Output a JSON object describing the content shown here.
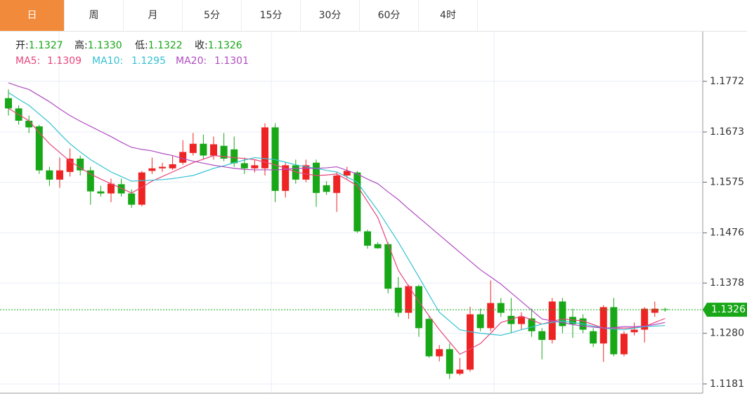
{
  "tabs": [
    "日",
    "周",
    "月",
    "5分",
    "15分",
    "30分",
    "60分",
    "4时"
  ],
  "active_tab": 0,
  "info": [
    {
      "label": "开:",
      "value": "1.1327"
    },
    {
      "label": "高:",
      "value": "1.1330"
    },
    {
      "label": "低:",
      "value": "1.1322"
    },
    {
      "label": "收:",
      "value": "1.1326"
    }
  ],
  "chart_data": {
    "type": "candlestick",
    "ylim": [
      1.1163,
      1.1869
    ],
    "yticks": [
      1.1772,
      1.1673,
      1.1575,
      1.1476,
      1.1378,
      {
        "value": 1.128,
        "label": "1.1280"
      },
      1.1181
    ],
    "grid": true,
    "up_color": "#ee2424",
    "down_color": "#17a717",
    "open": [
      1.1739,
      1.1719,
      1.1695,
      1.1684,
      1.1598,
      1.158,
      1.1595,
      1.1621,
      1.1598,
      1.1557,
      1.1553,
      1.1571,
      1.1553,
      1.1531,
      1.1597,
      1.1602,
      1.1602,
      1.1613,
      1.1632,
      1.165,
      1.1627,
      1.1646,
      1.1639,
      1.1612,
      1.1602,
      1.1602,
      1.1682,
      1.1558,
      1.1608,
      1.158,
      1.1613,
      1.1569,
      1.1554,
      1.1588,
      1.1594,
      1.1479,
      1.1454,
      1.1454,
      1.1369,
      1.132,
      1.1372,
      1.1308,
      1.1235,
      1.1249,
      1.1201,
      1.1209,
      1.1317,
      1.129,
      1.1339,
      1.1314,
      1.1298,
      1.1309,
      1.1284,
      1.1267,
      1.1342,
      1.1312,
      1.1309,
      1.1284,
      1.126,
      1.1331,
      1.1239,
      1.1282,
      1.1287,
      1.132,
      1.1327
    ],
    "high": [
      1.1756,
      1.1725,
      1.1705,
      1.1687,
      1.1605,
      1.1623,
      1.1641,
      1.1627,
      1.1605,
      1.1568,
      1.1582,
      1.1582,
      1.1561,
      1.1597,
      1.1623,
      1.1613,
      1.1627,
      1.1657,
      1.1671,
      1.1668,
      1.1664,
      1.1671,
      1.1664,
      1.1623,
      1.1619,
      1.169,
      1.169,
      1.1613,
      1.1619,
      1.1619,
      1.1619,
      1.1577,
      1.1594,
      1.1605,
      1.1597,
      1.1482,
      1.1458,
      1.1458,
      1.139,
      1.1375,
      1.1375,
      1.1314,
      1.1257,
      1.126,
      1.1232,
      1.1332,
      1.1328,
      1.1383,
      1.1349,
      1.1349,
      1.1321,
      1.1328,
      1.129,
      1.1349,
      1.1349,
      1.1328,
      1.1317,
      1.129,
      1.1335,
      1.1349,
      1.1284,
      1.1301,
      1.1331,
      1.1342,
      1.133
    ],
    "low": [
      1.1705,
      1.1687,
      1.1671,
      1.1591,
      1.1568,
      1.1564,
      1.1586,
      1.1588,
      1.1531,
      1.1547,
      1.1536,
      1.1547,
      1.1525,
      1.1528,
      1.1591,
      1.1595,
      1.1599,
      1.1609,
      1.1627,
      1.1619,
      1.1619,
      1.1616,
      1.1605,
      1.1591,
      1.1594,
      1.1588,
      1.1536,
      1.1545,
      1.1572,
      1.1575,
      1.1527,
      1.155,
      1.1517,
      1.1582,
      1.1476,
      1.1445,
      1.1445,
      1.1358,
      1.1312,
      1.1308,
      1.1273,
      1.1232,
      1.1225,
      1.1191,
      1.1198,
      1.1205,
      1.1284,
      1.1284,
      1.1312,
      1.128,
      1.1287,
      1.1273,
      1.1229,
      1.126,
      1.128,
      1.1271,
      1.128,
      1.1253,
      1.1224,
      1.1235,
      1.1235,
      1.1276,
      1.1262,
      1.1312,
      1.1322
    ],
    "close": [
      1.1719,
      1.1695,
      1.1682,
      1.1598,
      1.158,
      1.1598,
      1.1621,
      1.1598,
      1.1557,
      1.1553,
      1.1572,
      1.1553,
      1.1531,
      1.1594,
      1.1602,
      1.1605,
      1.161,
      1.1634,
      1.165,
      1.1627,
      1.1649,
      1.1621,
      1.1612,
      1.1602,
      1.1608,
      1.1682,
      1.1558,
      1.1608,
      1.158,
      1.1608,
      1.1554,
      1.1556,
      1.1588,
      1.1597,
      1.1479,
      1.1451,
      1.1446,
      1.1367,
      1.132,
      1.1372,
      1.129,
      1.1235,
      1.1249,
      1.1201,
      1.1209,
      1.1317,
      1.129,
      1.1339,
      1.132,
      1.1298,
      1.1312,
      1.1284,
      1.1267,
      1.1342,
      1.1294,
      1.1298,
      1.1287,
      1.126,
      1.1331,
      1.1239,
      1.1279,
      1.1287,
      1.1328,
      1.1328,
      1.1326
    ],
    "series": [
      {
        "name": "MA5:",
        "value_label": "1.1309",
        "color": "#e8457c",
        "values": [
          1.1719,
          1.1707,
          1.1695,
          1.1672,
          1.165,
          1.1633,
          1.1616,
          1.1603,
          1.1591,
          1.1581,
          1.1572,
          1.1563,
          1.1554,
          1.1565,
          1.1577,
          1.1586,
          1.1595,
          1.1604,
          1.1613,
          1.162,
          1.1627,
          1.1625,
          1.1623,
          1.1621,
          1.1619,
          1.1614,
          1.1609,
          1.1602,
          1.1595,
          1.1591,
          1.1588,
          1.1589,
          1.1591,
          1.158,
          1.1568,
          1.1537,
          1.1506,
          1.1454,
          1.1403,
          1.1372,
          1.1342,
          1.1314,
          1.1287,
          1.1263,
          1.1239,
          1.1249,
          1.126,
          1.128,
          1.1301,
          1.1307,
          1.1314,
          1.1306,
          1.1298,
          1.1303,
          1.1308,
          1.1306,
          1.1304,
          1.1297,
          1.129,
          1.129,
          1.129,
          1.1291,
          1.1293,
          1.1301,
          1.1309
        ]
      },
      {
        "name": "MA10:",
        "value_label": "1.1295",
        "color": "#35c2d2",
        "values": [
          1.175,
          1.1737,
          1.1725,
          1.1708,
          1.1691,
          1.167,
          1.165,
          1.1634,
          1.1619,
          1.1607,
          1.1595,
          1.1586,
          1.1577,
          1.1578,
          1.1579,
          1.158,
          1.1582,
          1.1585,
          1.1588,
          1.1595,
          1.1602,
          1.1607,
          1.1613,
          1.1618,
          1.1623,
          1.1621,
          1.1619,
          1.1614,
          1.1609,
          1.1605,
          1.1602,
          1.1598,
          1.1595,
          1.1585,
          1.1575,
          1.1547,
          1.152,
          1.1489,
          1.1458,
          1.1424,
          1.139,
          1.1355,
          1.1321,
          1.1304,
          1.1287,
          1.1283,
          1.128,
          1.1278,
          1.1276,
          1.1281,
          1.1287,
          1.1292,
          1.1298,
          1.1301,
          1.1304,
          1.1301,
          1.1298,
          1.1294,
          1.129,
          1.1288,
          1.1287,
          1.129,
          1.1293,
          1.1294,
          1.1295
        ]
      },
      {
        "name": "MA20:",
        "value_label": "1.1301",
        "color": "#b04cc2",
        "values": [
          1.1769,
          1.1762,
          1.1756,
          1.1744,
          1.1732,
          1.1718,
          1.1705,
          1.1694,
          1.1684,
          1.1674,
          1.1664,
          1.1653,
          1.1643,
          1.1639,
          1.1636,
          1.1631,
          1.1627,
          1.1621,
          1.1616,
          1.1612,
          1.1608,
          1.1605,
          1.1602,
          1.16,
          1.1599,
          1.1599,
          1.1599,
          1.16,
          1.1602,
          1.1602,
          1.1602,
          1.1603,
          1.1605,
          1.1598,
          1.1591,
          1.1581,
          1.1572,
          1.1556,
          1.1541,
          1.1523,
          1.1506,
          1.1489,
          1.1472,
          1.1455,
          1.1438,
          1.1421,
          1.1404,
          1.139,
          1.1376,
          1.1359,
          1.1342,
          1.1325,
          1.1308,
          1.1304,
          1.1301,
          1.1297,
          1.1294,
          1.1292,
          1.129,
          1.1291,
          1.1293,
          1.1293,
          1.1294,
          1.1297,
          1.1301
        ]
      }
    ],
    "last_price": 1.1326,
    "last_price_color": "#17a717"
  }
}
